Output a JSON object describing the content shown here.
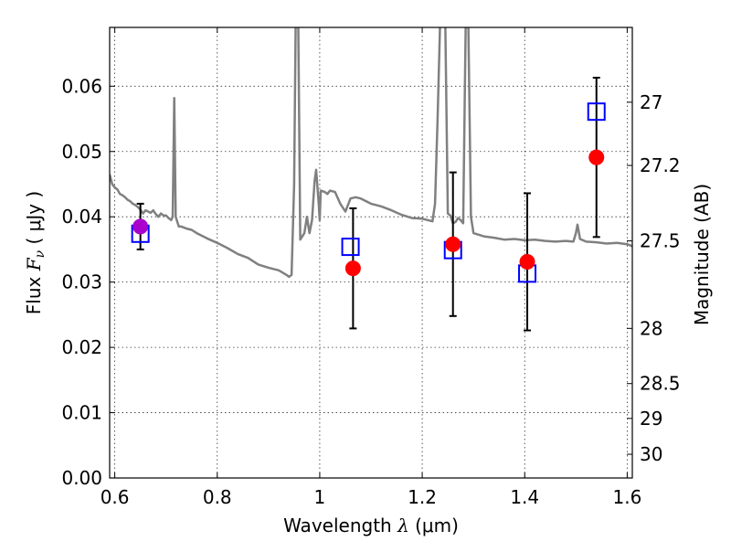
{
  "chart_data": {
    "type": "scatter",
    "xlabel": {
      "pre": "Wavelength  ",
      "symbol": "λ",
      "post": " (μm)"
    },
    "ylabel": {
      "pre": "Flux  ",
      "symbol": "F",
      "sub": "ν",
      "post": "  ( μJy )"
    },
    "ylabel_right": "Magnitude (AB)",
    "xlim": [
      0.59,
      1.61
    ],
    "ylim": [
      0.0,
      0.069
    ],
    "grid": true,
    "x_ticks": [
      {
        "value": 0.6,
        "label": "0.6"
      },
      {
        "value": 0.8,
        "label": "0.8"
      },
      {
        "value": 1.0,
        "label": "1"
      },
      {
        "value": 1.2,
        "label": "1.2"
      },
      {
        "value": 1.4,
        "label": "1.4"
      },
      {
        "value": 1.6,
        "label": "1.6"
      }
    ],
    "y_ticks": [
      {
        "value": 0.0,
        "label": "0.00"
      },
      {
        "value": 0.01,
        "label": "0.01"
      },
      {
        "value": 0.02,
        "label": "0.02"
      },
      {
        "value": 0.03,
        "label": "0.03"
      },
      {
        "value": 0.04,
        "label": "0.04"
      },
      {
        "value": 0.05,
        "label": "0.05"
      },
      {
        "value": 0.06,
        "label": "0.06"
      }
    ],
    "right_ticks": [
      {
        "mag": 27.0,
        "label": "27"
      },
      {
        "mag": 27.2,
        "label": "27.2"
      },
      {
        "mag": 27.5,
        "label": "27.5"
      },
      {
        "mag": 28.0,
        "label": "28"
      },
      {
        "mag": 28.5,
        "label": "28.5"
      },
      {
        "mag": 29.0,
        "label": "29"
      },
      {
        "mag": 30.0,
        "label": "30"
      }
    ],
    "template_spectrum": {
      "color": "#808080",
      "points": [
        [
          0.59,
          0.0465
        ],
        [
          0.595,
          0.045
        ],
        [
          0.6,
          0.0445
        ],
        [
          0.605,
          0.0442
        ],
        [
          0.61,
          0.0435
        ],
        [
          0.615,
          0.0433
        ],
        [
          0.62,
          0.043
        ],
        [
          0.625,
          0.0426
        ],
        [
          0.63,
          0.0424
        ],
        [
          0.635,
          0.042
        ],
        [
          0.64,
          0.0418
        ],
        [
          0.645,
          0.0415
        ],
        [
          0.65,
          0.0411
        ],
        [
          0.655,
          0.0405
        ],
        [
          0.66,
          0.041
        ],
        [
          0.665,
          0.0408
        ],
        [
          0.67,
          0.0406
        ],
        [
          0.675,
          0.041
        ],
        [
          0.68,
          0.0404
        ],
        [
          0.685,
          0.04
        ],
        [
          0.69,
          0.0405
        ],
        [
          0.695,
          0.0402
        ],
        [
          0.7,
          0.0402
        ],
        [
          0.705,
          0.0398
        ],
        [
          0.71,
          0.0395
        ],
        [
          0.713,
          0.04
        ],
        [
          0.716,
          0.0582
        ],
        [
          0.719,
          0.04
        ],
        [
          0.725,
          0.0385
        ],
        [
          0.73,
          0.0385
        ],
        [
          0.74,
          0.0382
        ],
        [
          0.75,
          0.038
        ],
        [
          0.76,
          0.0375
        ],
        [
          0.78,
          0.0367
        ],
        [
          0.8,
          0.036
        ],
        [
          0.82,
          0.0352
        ],
        [
          0.84,
          0.0343
        ],
        [
          0.86,
          0.0337
        ],
        [
          0.88,
          0.0327
        ],
        [
          0.9,
          0.0322
        ],
        [
          0.92,
          0.0318
        ],
        [
          0.935,
          0.0311
        ],
        [
          0.94,
          0.0308
        ],
        [
          0.945,
          0.0311
        ],
        [
          0.95,
          0.045
        ],
        [
          0.953,
          0.07
        ],
        [
          0.958,
          0.07
        ],
        [
          0.962,
          0.0365
        ],
        [
          0.97,
          0.0375
        ],
        [
          0.975,
          0.04
        ],
        [
          0.98,
          0.0375
        ],
        [
          0.985,
          0.0395
        ],
        [
          0.99,
          0.0455
        ],
        [
          0.993,
          0.0472
        ],
        [
          0.998,
          0.042
        ],
        [
          1.0,
          0.0395
        ],
        [
          1.002,
          0.044
        ],
        [
          1.01,
          0.0438
        ],
        [
          1.015,
          0.0435
        ],
        [
          1.02,
          0.044
        ],
        [
          1.03,
          0.0438
        ],
        [
          1.04,
          0.042
        ],
        [
          1.05,
          0.0408
        ],
        [
          1.06,
          0.0428
        ],
        [
          1.07,
          0.043
        ],
        [
          1.08,
          0.0428
        ],
        [
          1.1,
          0.042
        ],
        [
          1.12,
          0.0416
        ],
        [
          1.14,
          0.041
        ],
        [
          1.16,
          0.0403
        ],
        [
          1.18,
          0.0398
        ],
        [
          1.2,
          0.0397
        ],
        [
          1.22,
          0.0393
        ],
        [
          1.225,
          0.042
        ],
        [
          1.23,
          0.055
        ],
        [
          1.235,
          0.07
        ],
        [
          1.245,
          0.07
        ],
        [
          1.25,
          0.0405
        ],
        [
          1.255,
          0.0402
        ],
        [
          1.26,
          0.039
        ],
        [
          1.265,
          0.0392
        ],
        [
          1.27,
          0.0398
        ],
        [
          1.275,
          0.0395
        ],
        [
          1.28,
          0.039
        ],
        [
          1.285,
          0.07
        ],
        [
          1.29,
          0.07
        ],
        [
          1.295,
          0.04
        ],
        [
          1.3,
          0.0375
        ],
        [
          1.32,
          0.037
        ],
        [
          1.34,
          0.0368
        ],
        [
          1.36,
          0.0365
        ],
        [
          1.38,
          0.0366
        ],
        [
          1.4,
          0.0364
        ],
        [
          1.42,
          0.0365
        ],
        [
          1.44,
          0.0363
        ],
        [
          1.46,
          0.0362
        ],
        [
          1.48,
          0.0363
        ],
        [
          1.495,
          0.0362
        ],
        [
          1.5,
          0.0375
        ],
        [
          1.503,
          0.0388
        ],
        [
          1.508,
          0.0366
        ],
        [
          1.52,
          0.0362
        ],
        [
          1.54,
          0.0361
        ],
        [
          1.56,
          0.0359
        ],
        [
          1.58,
          0.036
        ],
        [
          1.6,
          0.0358
        ],
        [
          1.61,
          0.0355
        ]
      ]
    },
    "observed": {
      "color": "#ff0000",
      "points": [
        {
          "x": 1.065,
          "y": 0.0321,
          "yerr_low": 0.0092,
          "yerr_high": 0.0092
        },
        {
          "x": 1.26,
          "y": 0.0358,
          "yerr_low": 0.011,
          "yerr_high": 0.011
        },
        {
          "x": 1.405,
          "y": 0.0331,
          "yerr_low": 0.0105,
          "yerr_high": 0.0105
        },
        {
          "x": 1.54,
          "y": 0.0491,
          "yerr_low": 0.0122,
          "yerr_high": 0.0122
        }
      ]
    },
    "observed_alt": {
      "color": "#aa00cc",
      "points": [
        {
          "x": 0.65,
          "y": 0.0385,
          "yerr_low": 0.0035,
          "yerr_high": 0.0035
        }
      ]
    },
    "model": {
      "color": "#0000ff",
      "points": [
        {
          "x": 0.65,
          "y": 0.0374
        },
        {
          "x": 1.06,
          "y": 0.0354
        },
        {
          "x": 1.26,
          "y": 0.0349
        },
        {
          "x": 1.405,
          "y": 0.0313
        },
        {
          "x": 1.54,
          "y": 0.0561
        }
      ]
    }
  }
}
